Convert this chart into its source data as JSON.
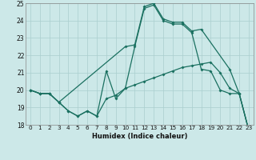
{
  "xlabel": "Humidex (Indice chaleur)",
  "xlim": [
    -0.5,
    23.5
  ],
  "ylim": [
    18,
    25
  ],
  "xticks": [
    0,
    1,
    2,
    3,
    4,
    5,
    6,
    7,
    8,
    9,
    10,
    11,
    12,
    13,
    14,
    15,
    16,
    17,
    18,
    19,
    20,
    21,
    22,
    23
  ],
  "yticks": [
    18,
    19,
    20,
    21,
    22,
    23,
    24,
    25
  ],
  "background_color": "#cce8e8",
  "grid_color": "#aacece",
  "line_color": "#1a7060",
  "line1_x": [
    0,
    1,
    2,
    3,
    4,
    5,
    6,
    7,
    8,
    9,
    10,
    11,
    12,
    13,
    14,
    15,
    16,
    17,
    18,
    19,
    20,
    21,
    22,
    23
  ],
  "line1_y": [
    20.0,
    19.8,
    19.8,
    19.3,
    18.8,
    18.5,
    18.8,
    18.5,
    19.5,
    19.7,
    20.1,
    20.3,
    20.5,
    20.7,
    20.9,
    21.1,
    21.3,
    21.4,
    21.5,
    21.6,
    21.0,
    20.1,
    19.8,
    17.7
  ],
  "line2_x": [
    0,
    1,
    2,
    3,
    10,
    11,
    12,
    13,
    14,
    15,
    16,
    17,
    18,
    21,
    22,
    23
  ],
  "line2_y": [
    20.0,
    19.8,
    19.8,
    19.3,
    22.5,
    22.6,
    24.8,
    25.0,
    24.1,
    23.9,
    23.9,
    23.4,
    23.5,
    21.2,
    19.8,
    17.7
  ],
  "line3_x": [
    0,
    1,
    2,
    3,
    4,
    5,
    6,
    7,
    8,
    9,
    10,
    11,
    12,
    13,
    14,
    15,
    16,
    17,
    18,
    19,
    20,
    21,
    22,
    23
  ],
  "line3_y": [
    20.0,
    19.8,
    19.8,
    19.3,
    18.8,
    18.5,
    18.8,
    18.5,
    21.1,
    19.5,
    20.1,
    22.5,
    24.7,
    24.9,
    24.0,
    23.8,
    23.8,
    23.3,
    21.2,
    21.1,
    20.0,
    19.8,
    19.8,
    17.7
  ]
}
